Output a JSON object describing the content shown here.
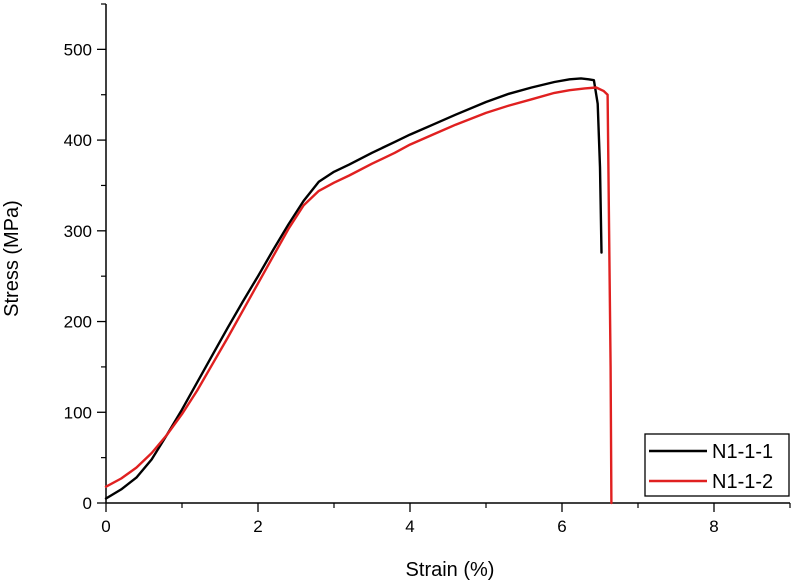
{
  "chart_data": {
    "type": "line",
    "title": "",
    "xlabel": "Strain (%)",
    "ylabel": "Stress (MPa)",
    "xlim": [
      0,
      9
    ],
    "ylim": [
      0,
      550
    ],
    "xticks": [
      0,
      2,
      4,
      6,
      8
    ],
    "yticks": [
      0,
      100,
      200,
      300,
      400,
      500
    ],
    "grid": false,
    "legend_position": "bottom-right",
    "series": [
      {
        "name": "N1-1-1",
        "color": "#000000",
        "points": [
          [
            0.0,
            5
          ],
          [
            0.2,
            15
          ],
          [
            0.4,
            28
          ],
          [
            0.6,
            48
          ],
          [
            0.8,
            75
          ],
          [
            1.0,
            103
          ],
          [
            1.2,
            133
          ],
          [
            1.4,
            163
          ],
          [
            1.6,
            193
          ],
          [
            1.8,
            222
          ],
          [
            2.0,
            250
          ],
          [
            2.2,
            279
          ],
          [
            2.4,
            307
          ],
          [
            2.6,
            333
          ],
          [
            2.8,
            354
          ],
          [
            3.0,
            365
          ],
          [
            3.2,
            373
          ],
          [
            3.5,
            386
          ],
          [
            3.8,
            398
          ],
          [
            4.0,
            406
          ],
          [
            4.3,
            417
          ],
          [
            4.6,
            428
          ],
          [
            5.0,
            442
          ],
          [
            5.3,
            451
          ],
          [
            5.6,
            458
          ],
          [
            5.9,
            464
          ],
          [
            6.1,
            467
          ],
          [
            6.25,
            468
          ],
          [
            6.35,
            467
          ],
          [
            6.42,
            466
          ],
          [
            6.47,
            440
          ],
          [
            6.5,
            370
          ],
          [
            6.52,
            276
          ]
        ]
      },
      {
        "name": "N1-1-2",
        "color": "#e02020",
        "points": [
          [
            0.0,
            18
          ],
          [
            0.2,
            27
          ],
          [
            0.4,
            39
          ],
          [
            0.6,
            55
          ],
          [
            0.8,
            75
          ],
          [
            1.0,
            98
          ],
          [
            1.2,
            124
          ],
          [
            1.4,
            153
          ],
          [
            1.6,
            182
          ],
          [
            1.8,
            212
          ],
          [
            2.0,
            242
          ],
          [
            2.2,
            272
          ],
          [
            2.4,
            302
          ],
          [
            2.6,
            328
          ],
          [
            2.8,
            344
          ],
          [
            3.0,
            353
          ],
          [
            3.2,
            361
          ],
          [
            3.5,
            374
          ],
          [
            3.8,
            386
          ],
          [
            4.0,
            395
          ],
          [
            4.3,
            406
          ],
          [
            4.6,
            417
          ],
          [
            5.0,
            430
          ],
          [
            5.3,
            438
          ],
          [
            5.6,
            445
          ],
          [
            5.9,
            452
          ],
          [
            6.1,
            455
          ],
          [
            6.3,
            457
          ],
          [
            6.45,
            458
          ],
          [
            6.55,
            454
          ],
          [
            6.6,
            450
          ],
          [
            6.62,
            300
          ],
          [
            6.64,
            150
          ],
          [
            6.65,
            0
          ]
        ]
      }
    ]
  }
}
